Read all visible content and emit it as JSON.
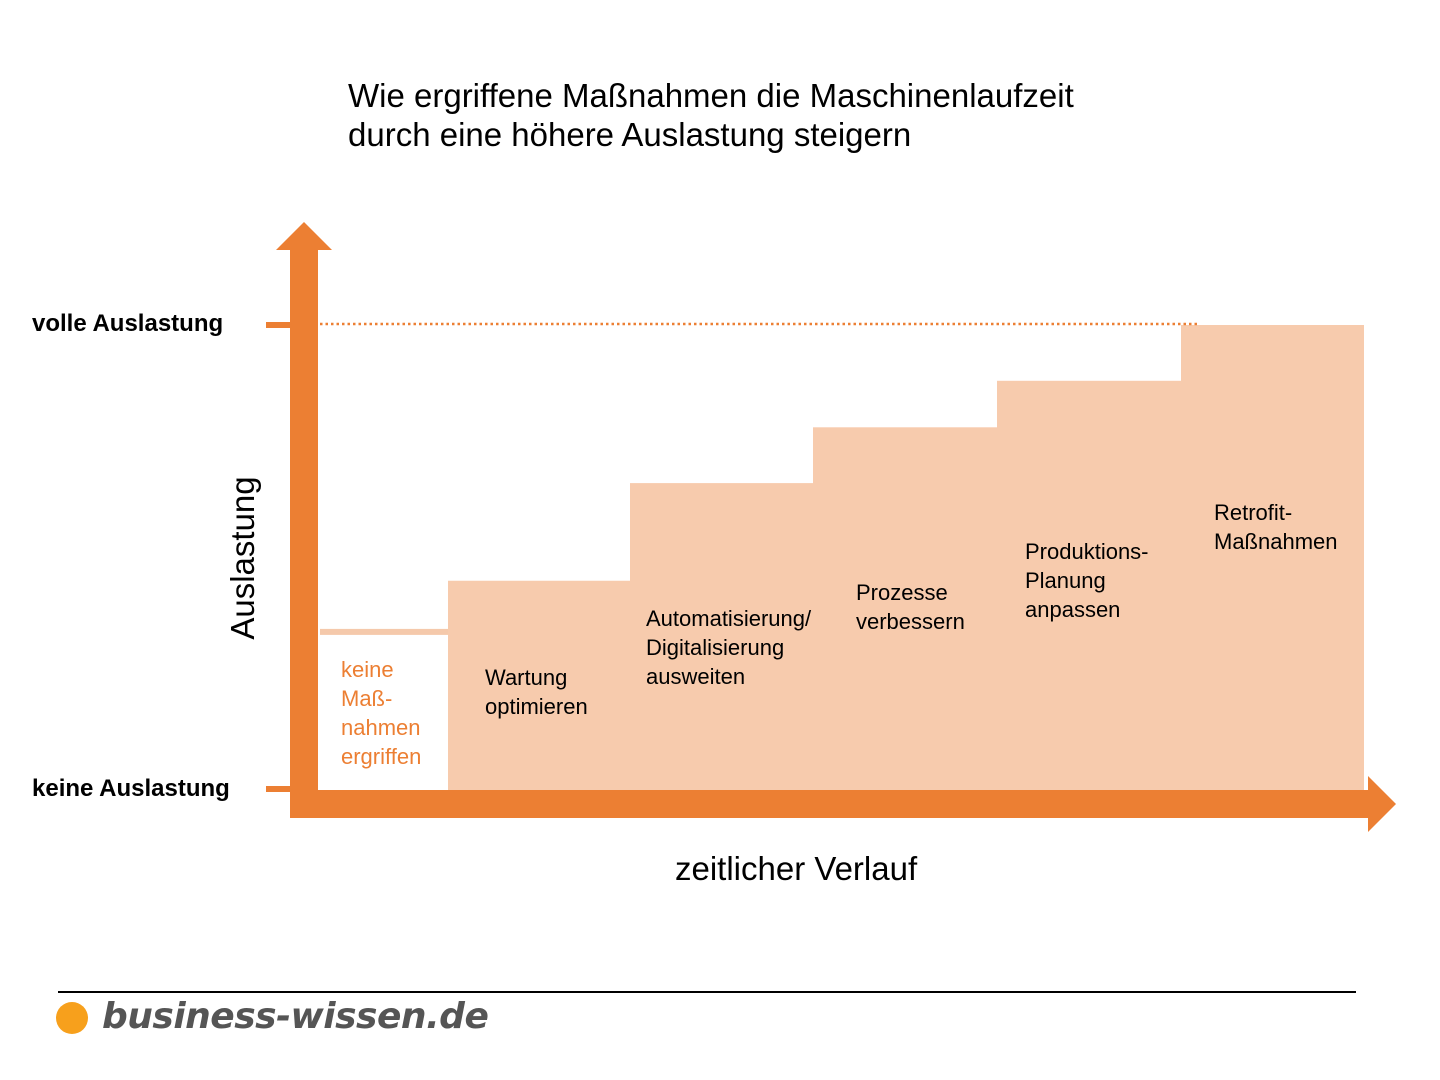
{
  "title": {
    "line1": "Wie ergriffene Maßnahmen die Maschinenlaufzeit",
    "line2": "durch eine höhere Auslastung steigern"
  },
  "y_axis": {
    "label": "Auslastung",
    "top_level": "volle Auslastung",
    "bottom_level": "keine Auslastung"
  },
  "x_axis": {
    "label": "zeitlicher Verlauf"
  },
  "steps": [
    {
      "label": "keine\nMaß-\nnahmen\nergriffen",
      "level": 0.34
    },
    {
      "label": "Wartung\noptimieren",
      "level": 0.45
    },
    {
      "label": "Automatisierung/\nDigitalisierung\nausweiten",
      "level": 0.66
    },
    {
      "label": "Prozesse\nverbessern",
      "level": 0.78
    },
    {
      "label": "Produktions-\nPlanung\nanpassen",
      "level": 0.88
    },
    {
      "label": "Retrofit-\nMaßnahmen",
      "level": 1.0
    }
  ],
  "colors": {
    "axis": "#ec7f33",
    "step_fill": "#f7cbad",
    "base_line": "#f5c9ab",
    "base_text": "#ec7f33",
    "brand_dot": "#f7a01c",
    "brand_text": "#555555"
  },
  "footer": {
    "brand": "business-wissen.de"
  }
}
